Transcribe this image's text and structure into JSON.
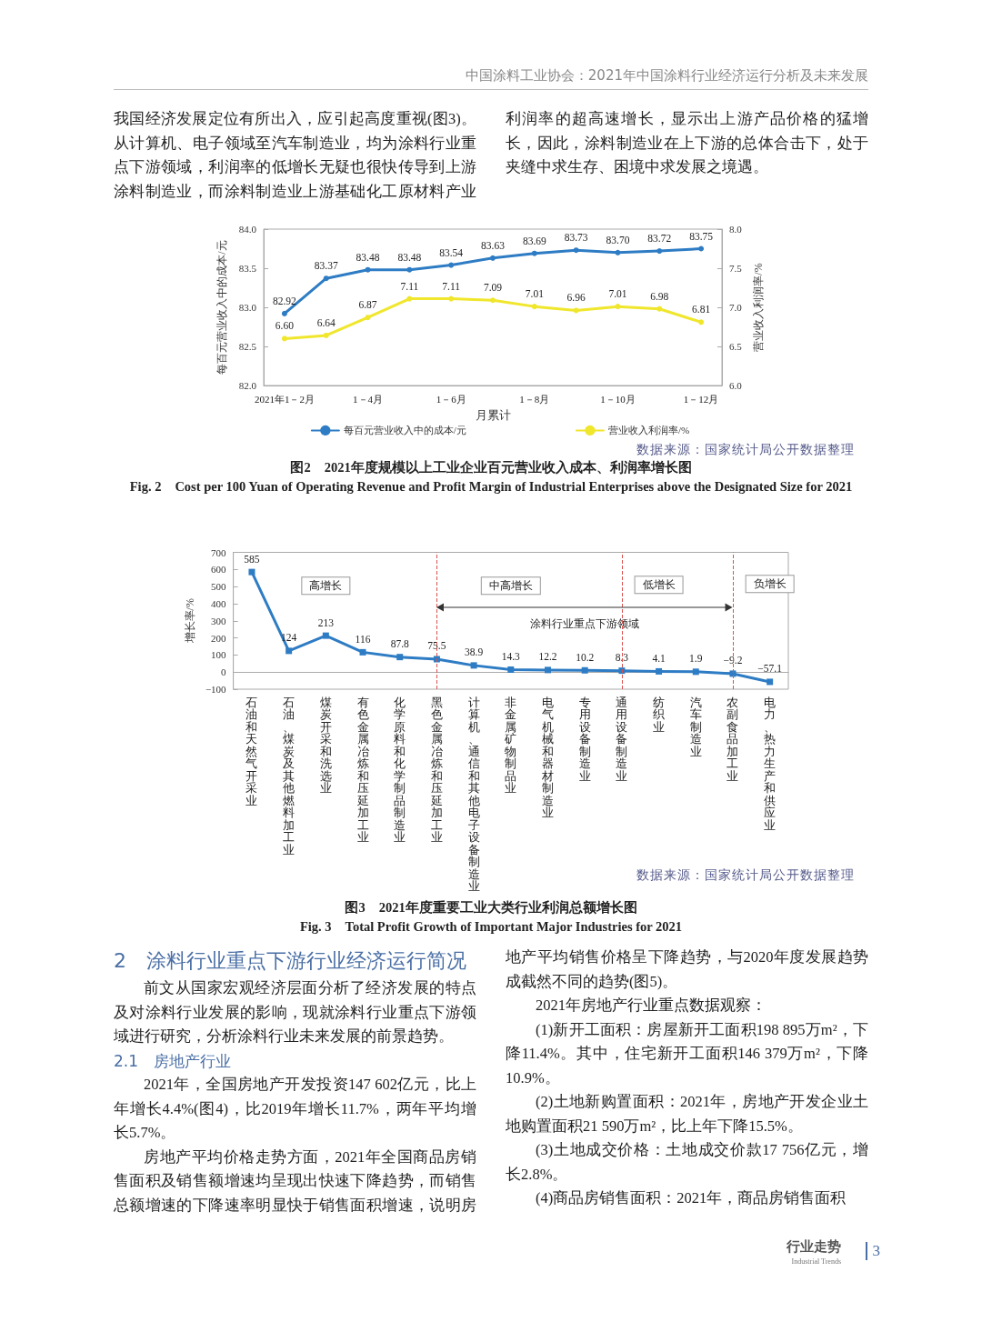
{
  "chart_data": [
    {
      "type": "other",
      "title": "中国涂料工业协会：2021年中国涂料行业经济运行分析及未来发展",
      "annotations": [
        "我国经济发展定位有所出入，应引起高度重视(图3)。从计算机、电子领域至汽车制造业，均为涂料行业重点下游领域，利润率的低增长无疑也很快传导到上游涂料制造业，而涂料制造业上游基础化工原材料产业利润率的超高速增长，显示出上游产品价格的猛增长，因此，涂料制造业在上下游的总体合击下，处于夹缝中求生存、困境中求发展之境遇。"
      ]
    },
    {
      "type": "line",
      "title": "图2　2021年度规模以上工业企业百元营业收入成本、利润率增长图",
      "subtitle": "Fig. 2　Cost per 100 Yuan of Operating Revenue and Profit Margin of Industrial Enterprises above the Designated Size for 2021",
      "xlabel": "月累计",
      "ylabel": "每百元营业收入中的成本/元",
      "y2label": "营业收入利润率/%",
      "categories": [
        "2021年1－2月",
        null,
        "1－4月",
        null,
        "1－6月",
        null,
        "1－8月",
        null,
        "1－10月",
        null,
        "1－12月"
      ],
      "series": [
        {
          "name": "每百元营业收入中的成本/元",
          "color": "#2e7cc4",
          "values": [
            82.92,
            83.37,
            83.48,
            83.48,
            83.54,
            83.63,
            83.69,
            83.73,
            83.7,
            83.72,
            83.75
          ],
          "value_labels": [
            "82.92",
            "83.37",
            "83.48",
            "83.48",
            "83.54",
            "83.63",
            "83.69",
            "83.73",
            "83.70",
            "83.72",
            "83.75"
          ]
        },
        {
          "name": "营业收入利润率/%",
          "color": "#f0e62c",
          "axis": "y2",
          "values": [
            6.6,
            6.64,
            6.87,
            7.11,
            7.11,
            7.09,
            7.01,
            6.96,
            7.01,
            6.98,
            6.81
          ],
          "value_labels": [
            "6.60",
            "6.64",
            "6.87",
            "7.11",
            "7.11",
            "7.09",
            "7.01",
            "6.96",
            "7.01",
            "6.98",
            "6.81"
          ]
        }
      ],
      "ylim": [
        82,
        84
      ],
      "yticks": [
        {
          "value": 82,
          "label": "82.0"
        },
        {
          "value": 82.5,
          "label": "82.5"
        },
        {
          "value": 83,
          "label": "83.0"
        },
        {
          "value": 83.5,
          "label": "83.5"
        },
        {
          "value": 84,
          "label": "84.0"
        }
      ],
      "y2lim": [
        6,
        8
      ],
      "y2ticks": [
        {
          "value": 6,
          "label": "6.0"
        },
        {
          "value": 6.5,
          "label": "6.5"
        },
        {
          "value": 7,
          "label": "7.0"
        },
        {
          "value": 7.5,
          "label": "7.5"
        },
        {
          "value": 8,
          "label": "8.0"
        }
      ],
      "marker": "circle",
      "grid": false,
      "legend": "bottom",
      "annotations": [
        "数据来源：国家统计局公开数据整理"
      ]
    },
    {
      "type": "line",
      "title": "图3　2021年度重要工业大类行业利润总额增长图",
      "subtitle": "Fig. 3　Total Profit Growth of Important Major Industries for 2021",
      "ylabel": "增长率/%",
      "categories": [
        "石油和天然气开采业",
        "石油、煤炭及其他燃料加工业",
        "煤炭开采和洗选业",
        "有色金属冶炼和压延加工业",
        "化学原料和化学制品制造业",
        "黑色金属冶炼和压延加工业",
        "计算机、通信和其他电子设备制造业",
        "非金属矿物制品业",
        "电气机械和器材制造业",
        "专用设备制造业",
        "通用设备制造业",
        "纺织业",
        "汽车制造业",
        "农副食品加工业",
        "电力、热力生产和供应业"
      ],
      "values": [
        585,
        124,
        213,
        116,
        87.8,
        75.5,
        38.9,
        14.3,
        12.2,
        10.2,
        8.3,
        4.1,
        1.9,
        -9.2,
        -57.1
      ],
      "value_labels": [
        "585",
        "124",
        "213",
        "116",
        "87.8",
        "75.5",
        "38.9",
        "14.3",
        "12.2",
        "10.2",
        "8.3",
        "4.1",
        "1.9",
        "−9.2",
        "−57.1"
      ],
      "color": "#2e7cc4",
      "ylim": [
        -100,
        700
      ],
      "yticks": [
        {
          "value": -100,
          "label": "−100"
        },
        0,
        100,
        200,
        300,
        400,
        500,
        600,
        700
      ],
      "marker": "square",
      "grid": false,
      "ref_lines": [
        {
          "axis": "x",
          "value": "黑色金属冶炼和压延加工业",
          "color": "#d9534f",
          "line_style": "dashed"
        },
        {
          "axis": "x",
          "value": "通用设备制造业",
          "color": "#d9534f",
          "line_style": "dashed"
        },
        {
          "axis": "x",
          "value": "农副食品加工业",
          "color": "#d9534f",
          "line_style": "dashed"
        }
      ],
      "annotations": [
        "高增长",
        "中高增长",
        "低增长",
        "负增长",
        "涂料行业重点下游领域",
        "数据来源：国家统计局公开数据整理"
      ]
    },
    {
      "type": "other",
      "annotations": [
        "2　涂料行业重点下游行业经济运行简况",
        "前文从国家宏观经济层面分析了经济发展的特点及对涂料行业发展的影响，现就涂料行业重点下游领域进行研究，分析涂料行业未来发展的前景趋势。",
        "2.1　房地产行业",
        "2021年，全国房地产开发投资147 602亿元，比上年增长4.4%(图4)，比2019年增长11.7%，两年平均增长5.7%。",
        "房地产平均价格走势方面，2021年全国商品房销售面积及销售额增速均呈现出快速下降趋势，而销售总额增速的下降速率明显快于销售面积增速，说明房地产平均销售价格呈下降趋势，与2020年度发展趋势成截然不同的趋势(图5)。",
        "2021年房地产行业重点数据观察：",
        "(1)新开工面积：房屋新开工面积198 895万m²，下降11.4%。其中，住宅新开工面积146 379万m²，下降10.9%。",
        "(2)土地新购置面积：2021年，房地产开发企业土地购置面积21 590万m²，比上年下降15.5%。",
        "(3)土地成交价格：土地成交价款17 756亿元，增长2.8%。",
        "(4)商品房销售面积：2021年，商品房销售面积",
        "行业走势",
        "Industrial Trends",
        "3"
      ]
    }
  ]
}
